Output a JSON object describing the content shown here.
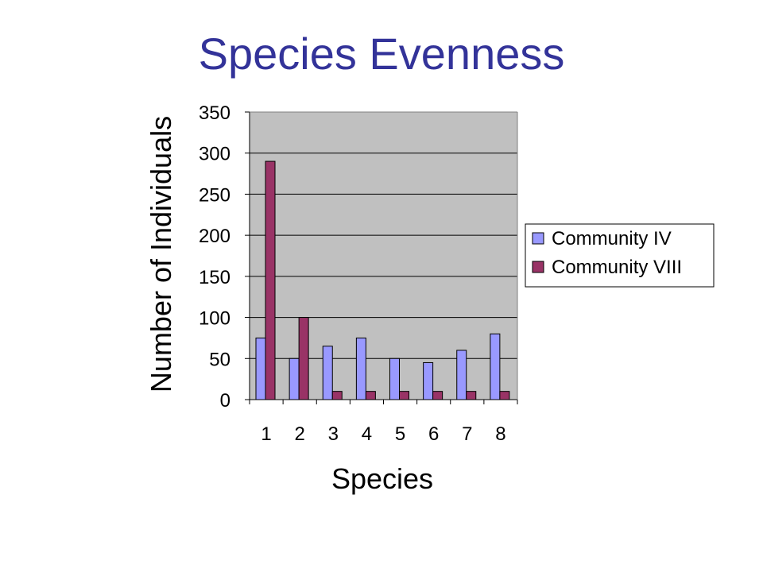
{
  "slide": {
    "title": "Species Evenness"
  },
  "chart_data": {
    "type": "bar",
    "title": "",
    "xlabel": "Species",
    "ylabel": "Number of Individuals",
    "categories": [
      "1",
      "2",
      "3",
      "4",
      "5",
      "6",
      "7",
      "8"
    ],
    "ylim": [
      0,
      350
    ],
    "yticks": [
      0,
      50,
      100,
      150,
      200,
      250,
      300,
      350
    ],
    "grid": true,
    "legend_position": "right",
    "series": [
      {
        "name": "Community IV",
        "color": "#9999ff",
        "values": [
          75,
          50,
          65,
          75,
          50,
          45,
          60,
          80
        ]
      },
      {
        "name": "Community VIII",
        "color": "#993366",
        "values": [
          290,
          100,
          10,
          10,
          10,
          10,
          10,
          10
        ]
      }
    ],
    "plot_background": "#c0c0c0"
  }
}
